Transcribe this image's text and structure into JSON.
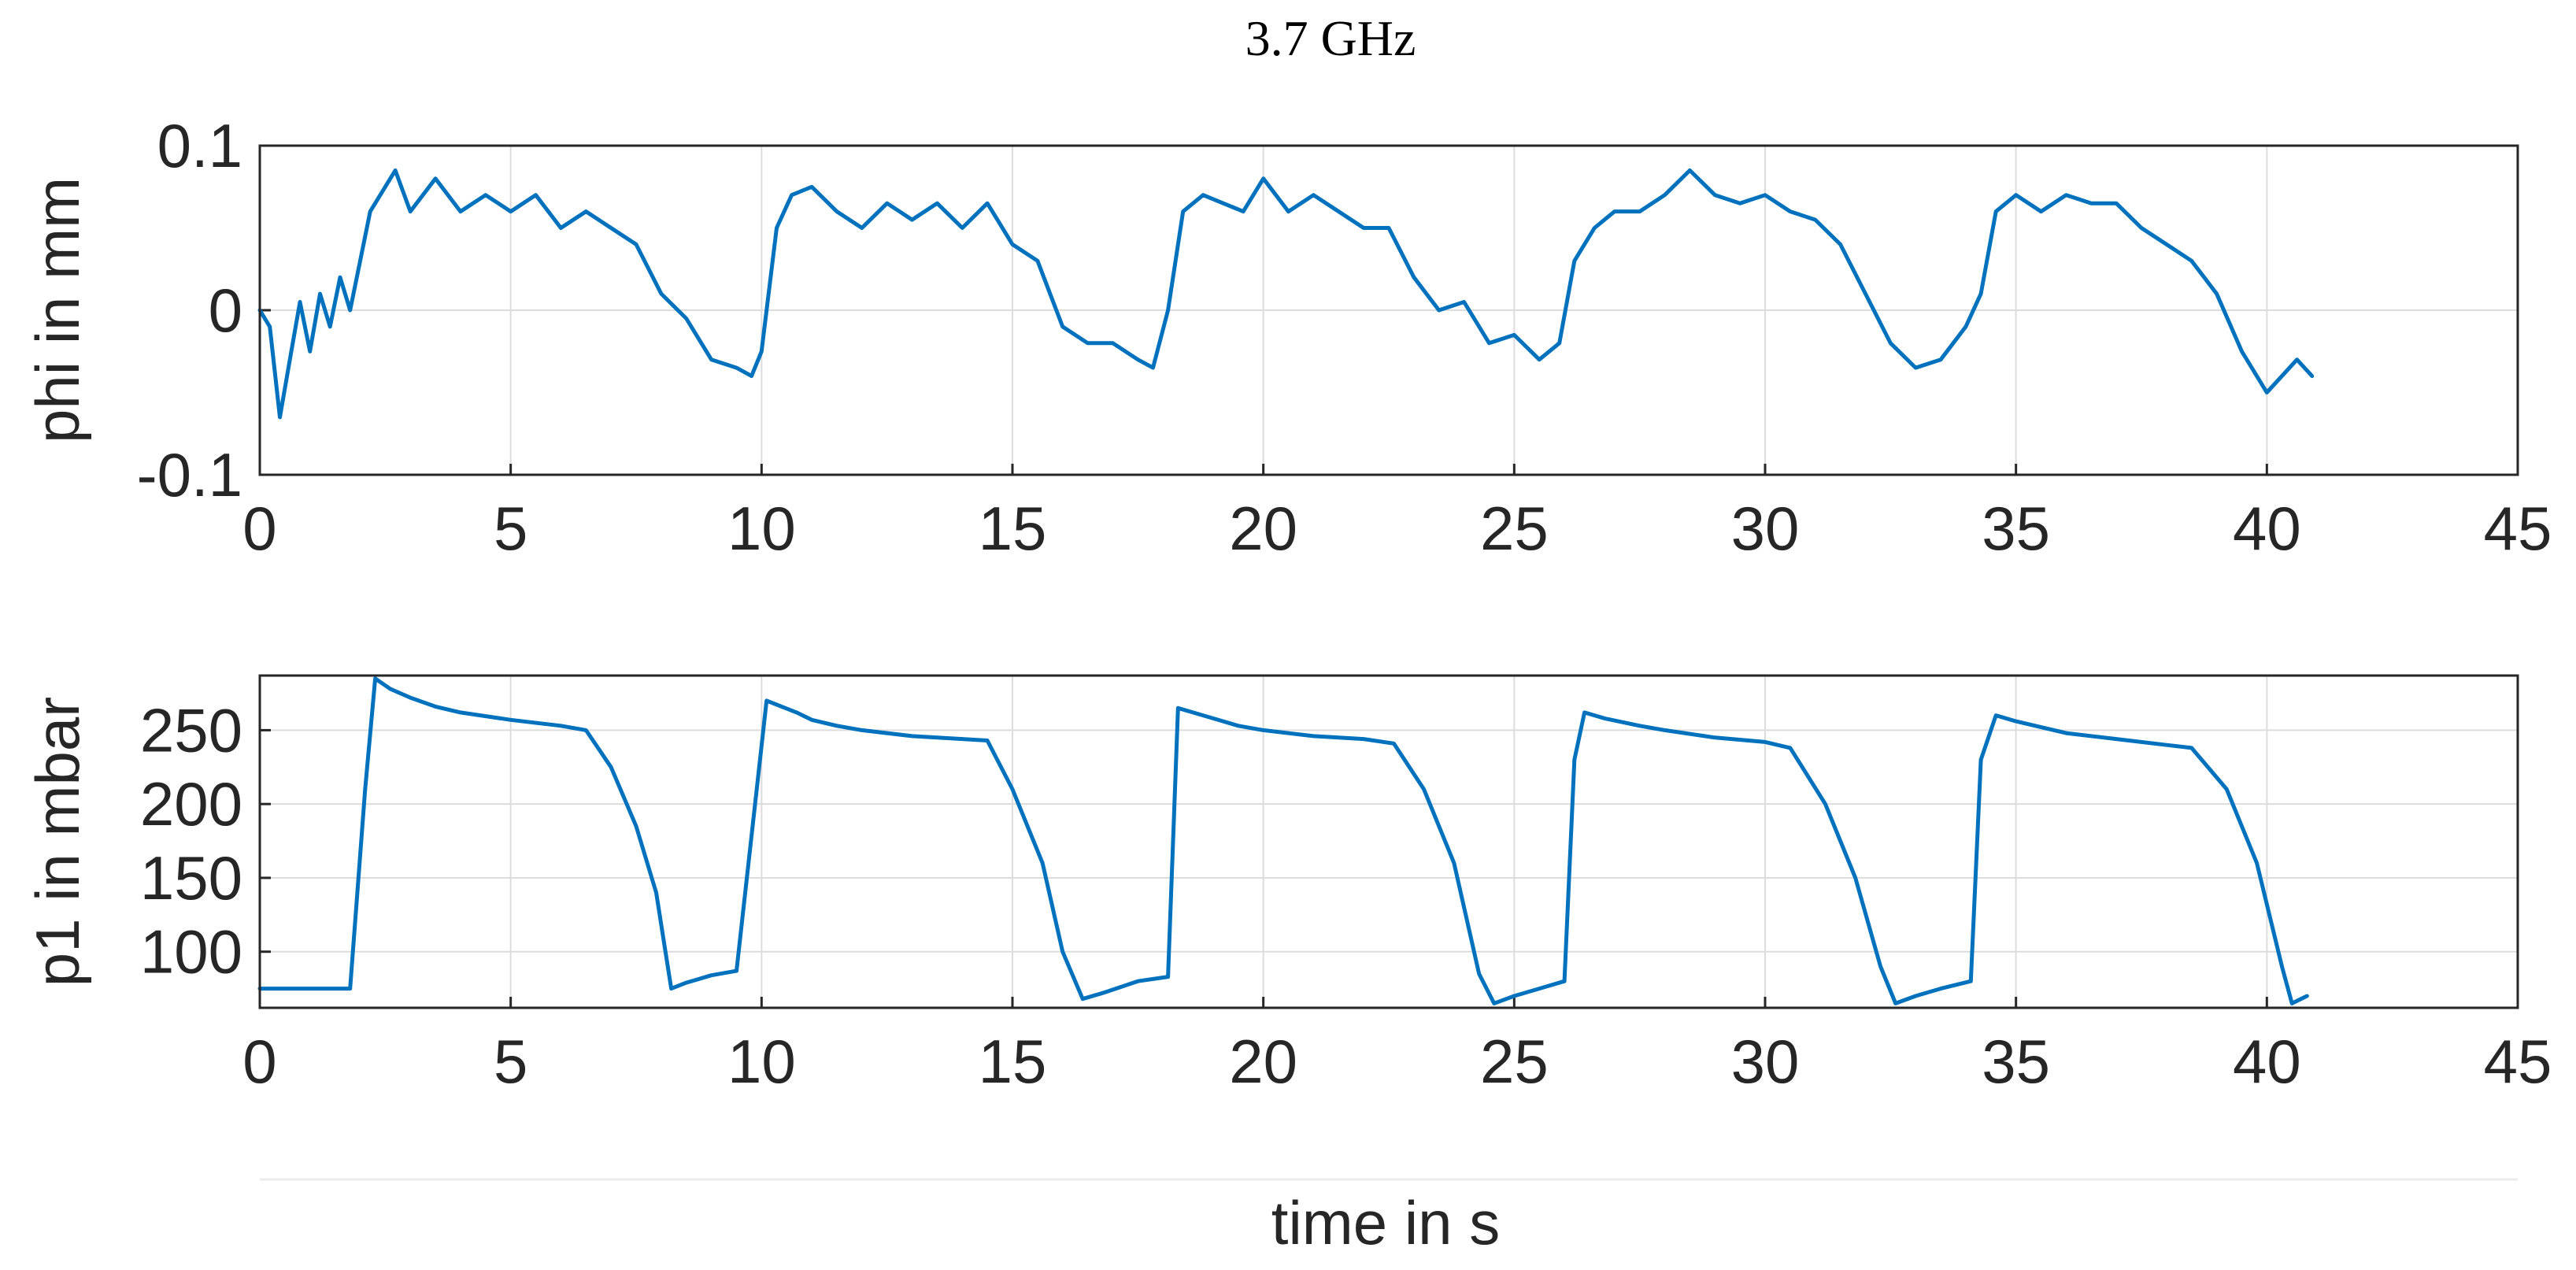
{
  "figure_title": "3.7 GHz",
  "xlabel": "time in s",
  "chart_data": [
    {
      "type": "line",
      "ylabel": "phi in mm",
      "xlim": [
        0,
        45
      ],
      "ylim": [
        -0.1,
        0.1
      ],
      "x_ticks": [
        0,
        5,
        10,
        15,
        20,
        25,
        30,
        35,
        40,
        45
      ],
      "y_ticks": [
        -0.1,
        0,
        0.1
      ],
      "y_tick_labels": [
        "-0.1",
        "0",
        "0.1"
      ],
      "grid": true,
      "color": "#0072BD",
      "series": [
        {
          "x": [
            0,
            0.2,
            0.4,
            0.6,
            0.8,
            1.0,
            1.2,
            1.4,
            1.6,
            1.8,
            2.0,
            2.2,
            2.4,
            2.7,
            3.0,
            3.5,
            4.0,
            4.5,
            5.0,
            5.5,
            6.0,
            6.5,
            7.0,
            7.5,
            8.0,
            8.5,
            9.0,
            9.5,
            9.8,
            10.0,
            10.3,
            10.6,
            11.0,
            11.5,
            12.0,
            12.5,
            13.0,
            13.5,
            14.0,
            14.5,
            15.0,
            15.5,
            16.0,
            16.5,
            17.0,
            17.5,
            17.8,
            18.1,
            18.4,
            18.8,
            19.2,
            19.6,
            20.0,
            20.5,
            21.0,
            21.5,
            22.0,
            22.5,
            23.0,
            23.5,
            24.0,
            24.5,
            25.0,
            25.5,
            25.9,
            26.2,
            26.6,
            27.0,
            27.5,
            28.0,
            28.5,
            29.0,
            29.5,
            30.0,
            30.5,
            31.0,
            31.5,
            32.0,
            32.5,
            33.0,
            33.5,
            34.0,
            34.3,
            34.6,
            35.0,
            35.5,
            36.0,
            36.5,
            37.0,
            37.5,
            38.0,
            38.5,
            39.0,
            39.5,
            40.0,
            40.3,
            40.6,
            40.9
          ],
          "y": [
            0.0,
            -0.01,
            -0.065,
            -0.03,
            0.005,
            -0.025,
            0.01,
            -0.01,
            0.02,
            0.0,
            0.03,
            0.06,
            0.07,
            0.085,
            0.06,
            0.08,
            0.06,
            0.07,
            0.06,
            0.07,
            0.05,
            0.06,
            0.05,
            0.04,
            0.01,
            -0.005,
            -0.03,
            -0.035,
            -0.04,
            -0.025,
            0.05,
            0.07,
            0.075,
            0.06,
            0.05,
            0.065,
            0.055,
            0.065,
            0.05,
            0.065,
            0.04,
            0.03,
            -0.01,
            -0.02,
            -0.02,
            -0.03,
            -0.035,
            0.0,
            0.06,
            0.07,
            0.065,
            0.06,
            0.08,
            0.06,
            0.07,
            0.06,
            0.05,
            0.05,
            0.02,
            0.0,
            0.005,
            -0.02,
            -0.015,
            -0.03,
            -0.02,
            0.03,
            0.05,
            0.06,
            0.06,
            0.07,
            0.085,
            0.07,
            0.065,
            0.07,
            0.06,
            0.055,
            0.04,
            0.01,
            -0.02,
            -0.035,
            -0.03,
            -0.01,
            0.01,
            0.06,
            0.07,
            0.06,
            0.07,
            0.065,
            0.065,
            0.05,
            0.04,
            0.03,
            0.01,
            -0.025,
            -0.05,
            -0.04,
            -0.03,
            -0.04
          ]
        }
      ]
    },
    {
      "type": "line",
      "ylabel": "p1 in mbar",
      "xlim": [
        0,
        45
      ],
      "ylim": [
        62,
        287
      ],
      "x_ticks": [
        0,
        5,
        10,
        15,
        20,
        25,
        30,
        35,
        40,
        45
      ],
      "y_ticks": [
        100,
        150,
        200,
        250
      ],
      "y_tick_labels": [
        "100",
        "150",
        "200",
        "250"
      ],
      "grid": true,
      "color": "#0072BD",
      "series": [
        {
          "x": [
            0,
            1.8,
            2.1,
            2.3,
            2.6,
            3.0,
            3.5,
            4.0,
            5.0,
            6.0,
            6.5,
            7.0,
            7.5,
            7.9,
            8.2,
            8.5,
            9.0,
            9.5,
            10.1,
            10.4,
            10.7,
            11.0,
            11.5,
            12.0,
            13.0,
            14.0,
            14.5,
            15.0,
            15.6,
            16.0,
            16.4,
            16.8,
            17.5,
            18.1,
            18.3,
            18.6,
            19.0,
            19.5,
            20.0,
            21.0,
            22.0,
            22.6,
            23.2,
            23.8,
            24.3,
            24.6,
            25.0,
            25.5,
            26.0,
            26.2,
            26.4,
            26.8,
            27.5,
            28.0,
            29.0,
            30.0,
            30.5,
            31.2,
            31.8,
            32.3,
            32.6,
            33.0,
            33.5,
            34.1,
            34.3,
            34.6,
            35.0,
            35.5,
            36.0,
            37.0,
            38.0,
            38.5,
            39.2,
            39.8,
            40.3,
            40.5,
            40.8
          ],
          "y": [
            75,
            75,
            210,
            285,
            278,
            272,
            266,
            262,
            257,
            253,
            250,
            225,
            185,
            140,
            75,
            79,
            84,
            87,
            270,
            266,
            262,
            257,
            253,
            250,
            246,
            244,
            243,
            210,
            160,
            100,
            68,
            72,
            80,
            83,
            265,
            262,
            258,
            253,
            250,
            246,
            244,
            241,
            210,
            160,
            85,
            65,
            70,
            75,
            80,
            230,
            262,
            258,
            253,
            250,
            245,
            242,
            238,
            200,
            150,
            90,
            65,
            70,
            75,
            80,
            230,
            260,
            256,
            252,
            248,
            244,
            240,
            238,
            210,
            160,
            90,
            65,
            70
          ]
        }
      ]
    }
  ]
}
